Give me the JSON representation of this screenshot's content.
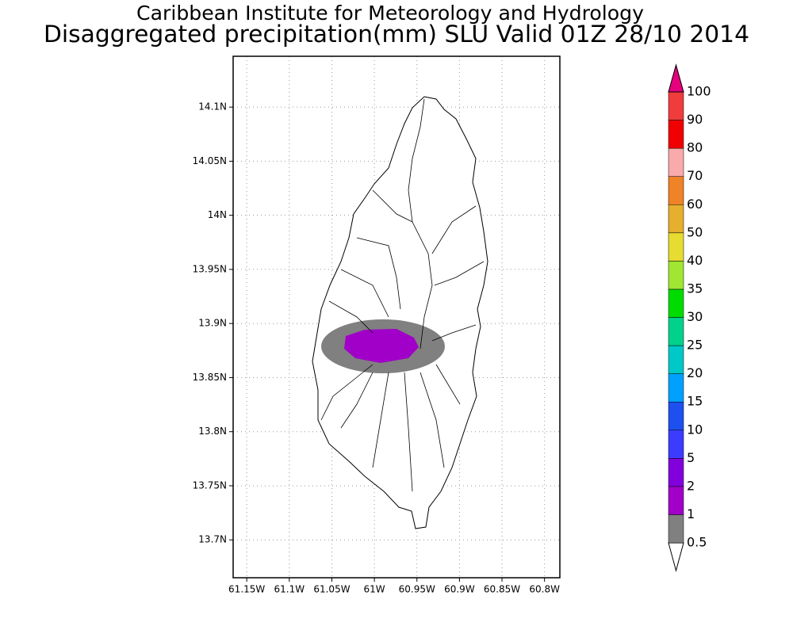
{
  "title": "Caribbean Institute for Meteorology and Hydrology",
  "subtitle": "Disaggregated precipitation(mm) SLU Valid 01Z 28/10 2014",
  "map": {
    "xlim": [
      -61.166,
      -60.782
    ],
    "ylim": [
      13.665,
      14.147
    ],
    "xticks": [
      {
        "value": -61.15,
        "label": "61.15W"
      },
      {
        "value": -61.1,
        "label": "61.1W"
      },
      {
        "value": -61.05,
        "label": "61.05W"
      },
      {
        "value": -61,
        "label": "61W"
      },
      {
        "value": -60.95,
        "label": "60.95W"
      },
      {
        "value": -60.9,
        "label": "60.9W"
      },
      {
        "value": -60.85,
        "label": "60.85W"
      },
      {
        "value": -60.8,
        "label": "60.8W"
      }
    ],
    "yticks": [
      {
        "value": 13.7,
        "label": "13.7N"
      },
      {
        "value": 13.75,
        "label": "13.75N"
      },
      {
        "value": 13.8,
        "label": "13.8N"
      },
      {
        "value": 13.85,
        "label": "13.85N"
      },
      {
        "value": 13.9,
        "label": "13.9N"
      },
      {
        "value": 13.95,
        "label": "13.95N"
      },
      {
        "value": 14,
        "label": "14N"
      },
      {
        "value": 14.05,
        "label": "14.05N"
      },
      {
        "value": 14.1,
        "label": "14.1N"
      }
    ],
    "grid": true
  },
  "colorbar": {
    "levels": [
      0.5,
      1,
      2,
      5,
      10,
      15,
      20,
      25,
      30,
      35,
      40,
      50,
      60,
      70,
      80,
      90,
      100
    ],
    "colors": [
      "#ffffff",
      "#808080",
      "#a000c8",
      "#8200dc",
      "#3c3cff",
      "#1e50f0",
      "#00a0ff",
      "#00c8c8",
      "#00d28c",
      "#00dc00",
      "#a0e632",
      "#e6dc32",
      "#e6af2d",
      "#f08228",
      "#faaaaa",
      "#f00000",
      "#f03c3c",
      "#e6007d"
    ]
  }
}
